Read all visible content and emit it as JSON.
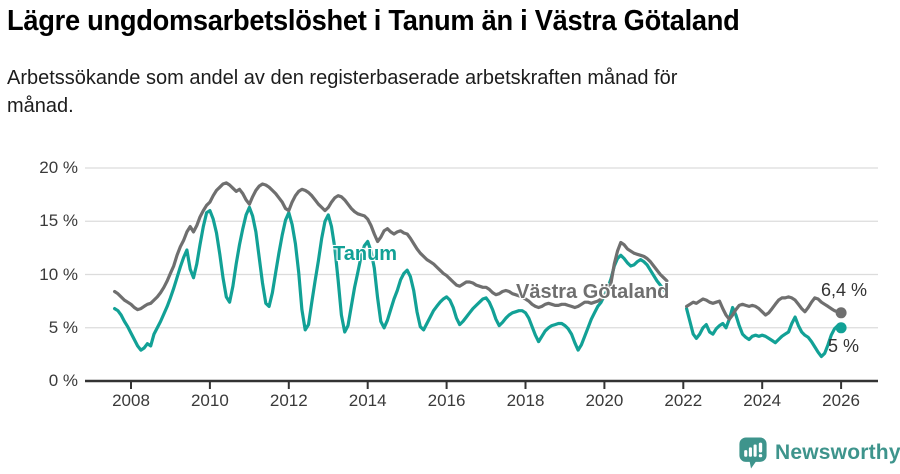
{
  "header": {
    "title": "Lägre ungdomsarbetslöshet i Tanum än i Västra Götaland",
    "subtitle_lines": [
      "Arbetssökande som andel av den registerbaserade arbetskraften månad för",
      "månad."
    ]
  },
  "chart_data": {
    "type": "line",
    "unit": "%",
    "frequency": "monthly",
    "start": {
      "year": 2007,
      "month": 8
    },
    "end": {
      "year": 2026,
      "month": 1
    },
    "ylim": [
      0,
      20
    ],
    "grid": "horizontal",
    "y_ticks": [
      0,
      5,
      10,
      15,
      20
    ],
    "y_tick_labels": [
      "0 %",
      "5 %",
      "10 %",
      "15 %",
      "20 %"
    ],
    "x_ticks": [
      2008,
      2010,
      2012,
      2014,
      2016,
      2018,
      2020,
      2022,
      2024,
      2026
    ],
    "data_gap_note": "both series have a break from 2021-09 to 2022-01",
    "series": [
      {
        "name": "Tanum",
        "color": "#12a196",
        "end_label": "5 %",
        "end_value": 5.0,
        "values": [
          6.8,
          6.6,
          6.2,
          5.6,
          5.1,
          4.5,
          3.9,
          3.3,
          2.9,
          3.1,
          3.5,
          3.3,
          4.4,
          5.0,
          5.6,
          6.3,
          7.0,
          7.8,
          8.7,
          9.7,
          10.7,
          11.6,
          12.3,
          10.5,
          9.7,
          11.0,
          12.8,
          14.5,
          15.8,
          16.0,
          15.2,
          13.9,
          11.9,
          9.7,
          7.9,
          7.4,
          8.9,
          11.0,
          12.8,
          14.3,
          15.6,
          16.3,
          15.5,
          14.0,
          11.6,
          9.2,
          7.3,
          7.0,
          8.3,
          10.2,
          12.0,
          13.7,
          15.1,
          15.8,
          14.7,
          12.9,
          10.2,
          6.7,
          4.8,
          5.3,
          7.4,
          9.4,
          11.3,
          13.4,
          15.0,
          15.6,
          14.5,
          12.5,
          9.5,
          6.2,
          4.6,
          5.2,
          7.0,
          8.8,
          10.2,
          11.7,
          12.7,
          13.1,
          12.2,
          10.6,
          7.8,
          5.6,
          5.0,
          5.7,
          6.7,
          7.7,
          8.5,
          9.5,
          10.1,
          10.4,
          9.8,
          8.5,
          6.5,
          5.1,
          4.8,
          5.4,
          6.0,
          6.6,
          7.0,
          7.4,
          7.7,
          7.9,
          7.6,
          6.9,
          5.9,
          5.3,
          5.6,
          6.0,
          6.4,
          6.8,
          7.1,
          7.4,
          7.7,
          7.8,
          7.4,
          6.7,
          5.8,
          5.2,
          5.5,
          5.9,
          6.2,
          6.4,
          6.5,
          6.6,
          6.6,
          6.4,
          5.9,
          5.1,
          4.3,
          3.7,
          4.2,
          4.7,
          5.0,
          5.2,
          5.3,
          5.4,
          5.4,
          5.2,
          4.9,
          4.4,
          3.6,
          2.9,
          3.4,
          4.2,
          5.0,
          5.8,
          6.4,
          7.0,
          7.4,
          8.0,
          8.7,
          9.6,
          10.8,
          11.5,
          11.8,
          11.5,
          11.1,
          10.8,
          10.9,
          11.2,
          11.4,
          11.2,
          10.9,
          10.4,
          9.9,
          9.4,
          9.0,
          8.6,
          8.2,
          null,
          null,
          null,
          null,
          null,
          6.8,
          5.6,
          4.4,
          4.0,
          4.4,
          5.0,
          5.3,
          4.6,
          4.4,
          4.9,
          5.2,
          5.4,
          5.0,
          5.8,
          6.9,
          6.2,
          5.2,
          4.4,
          4.1,
          3.9,
          4.2,
          4.3,
          4.2,
          4.3,
          4.2,
          4.0,
          3.8,
          3.6,
          3.9,
          4.2,
          4.4,
          4.6,
          5.4,
          6.0,
          5.2,
          4.6,
          4.3,
          4.1,
          3.7,
          3.2,
          2.7,
          2.3,
          2.6,
          3.4,
          4.3,
          4.9,
          5.2,
          5.0
        ]
      },
      {
        "name": "Västra Götaland",
        "color": "#6f6f6f",
        "end_label": "6,4 %",
        "end_value": 6.4,
        "values": [
          8.4,
          8.2,
          7.9,
          7.6,
          7.4,
          7.2,
          6.9,
          6.7,
          6.8,
          7.0,
          7.2,
          7.3,
          7.6,
          7.9,
          8.3,
          8.8,
          9.4,
          10.1,
          10.8,
          11.8,
          12.6,
          13.2,
          14.0,
          14.5,
          14.0,
          14.6,
          15.4,
          16.0,
          16.5,
          16.8,
          17.4,
          17.9,
          18.2,
          18.5,
          18.6,
          18.4,
          18.1,
          17.8,
          18.0,
          17.6,
          17.0,
          16.6,
          17.3,
          17.9,
          18.3,
          18.5,
          18.4,
          18.2,
          17.9,
          17.6,
          17.2,
          16.8,
          16.2,
          16.0,
          16.8,
          17.4,
          17.8,
          18.0,
          17.9,
          17.7,
          17.4,
          17.0,
          16.6,
          16.3,
          16.0,
          16.3,
          16.8,
          17.2,
          17.4,
          17.3,
          17.0,
          16.6,
          16.2,
          15.9,
          15.7,
          15.6,
          15.5,
          15.2,
          14.6,
          13.8,
          13.1,
          13.5,
          14.1,
          14.3,
          14.0,
          13.8,
          14.0,
          14.1,
          13.9,
          13.8,
          13.4,
          12.9,
          12.4,
          12.0,
          11.7,
          11.4,
          11.2,
          11.0,
          10.7,
          10.4,
          10.1,
          9.9,
          9.6,
          9.3,
          9.0,
          8.9,
          9.1,
          9.3,
          9.3,
          9.2,
          9.0,
          8.9,
          8.8,
          8.8,
          8.6,
          8.3,
          8.1,
          8.2,
          8.4,
          8.5,
          8.4,
          8.2,
          8.1,
          8.0,
          7.9,
          7.7,
          7.5,
          7.2,
          7.0,
          6.9,
          7.0,
          7.2,
          7.3,
          7.2,
          7.1,
          7.1,
          7.2,
          7.2,
          7.1,
          7.0,
          6.9,
          7.0,
          7.2,
          7.4,
          7.4,
          7.3,
          7.4,
          7.5,
          7.7,
          8.0,
          8.3,
          9.2,
          11.0,
          12.2,
          13.0,
          12.8,
          12.4,
          12.2,
          12.0,
          11.9,
          11.8,
          11.7,
          11.5,
          11.2,
          10.8,
          10.4,
          10.0,
          9.7,
          9.4,
          null,
          null,
          null,
          null,
          null,
          7.0,
          7.2,
          7.4,
          7.3,
          7.5,
          7.7,
          7.6,
          7.4,
          7.3,
          7.4,
          7.5,
          6.8,
          6.2,
          5.8,
          6.2,
          6.7,
          7.1,
          7.2,
          7.1,
          7.0,
          7.1,
          7.0,
          6.8,
          6.5,
          6.2,
          6.4,
          6.8,
          7.2,
          7.6,
          7.8,
          7.8,
          7.9,
          7.8,
          7.6,
          7.2,
          6.8,
          6.5,
          6.9,
          7.4,
          7.8,
          7.7,
          7.4,
          7.2,
          7.0,
          6.8,
          6.6,
          6.5,
          6.4
        ]
      }
    ],
    "colors": {
      "gridline": "#dcdcdc",
      "axis": "#333333",
      "tick_label": "#3a3a3a",
      "value_label": "#333333"
    }
  },
  "footer": {
    "brand": "Newsworthy",
    "brand_color": "#3e948c",
    "brand_icon": "newsworthy-bubble-barchart-icon"
  }
}
